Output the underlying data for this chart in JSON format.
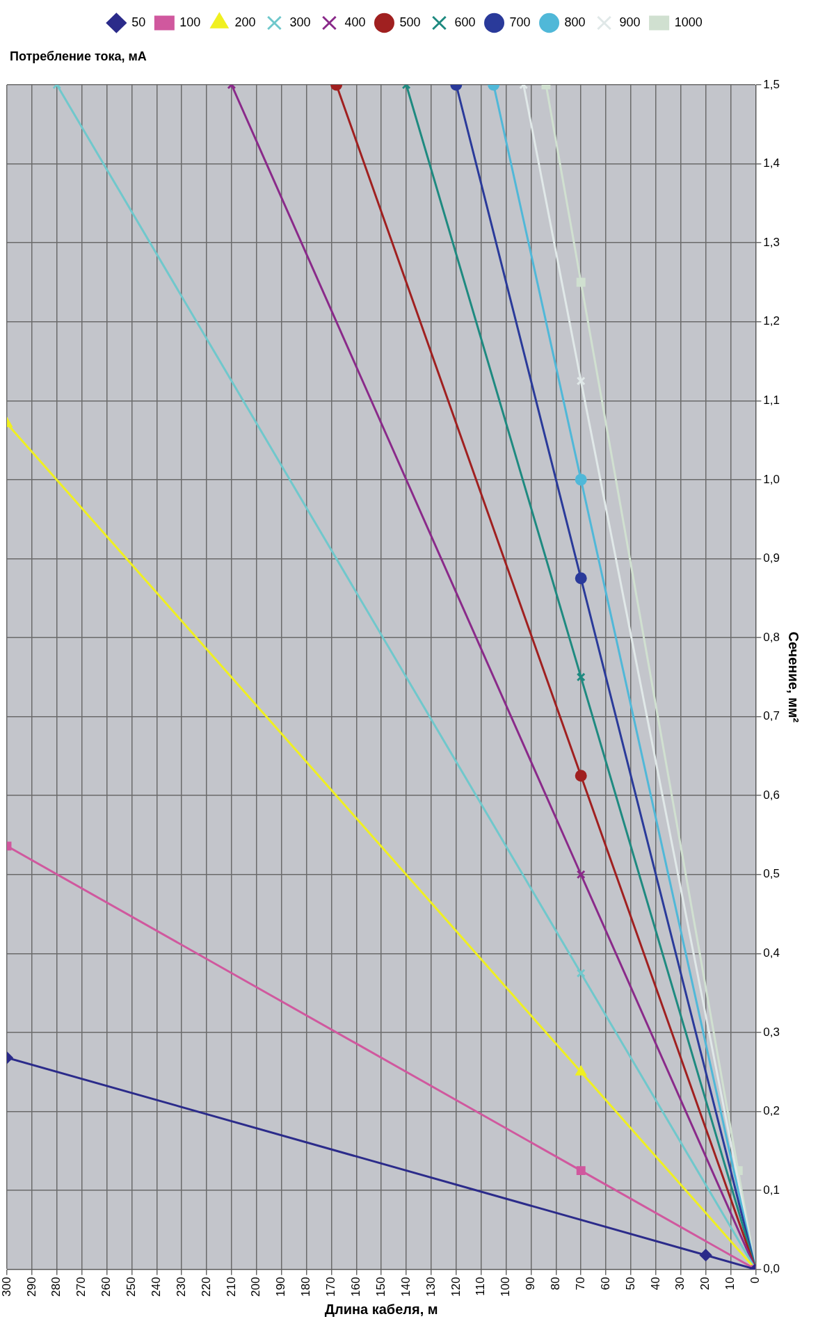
{
  "chart_data": {
    "type": "line",
    "xlabel": "Длина кабеля, м",
    "ylabel": "Сечение, мм²",
    "legend_title": "Потребление тока, мА",
    "xlim": [
      300,
      0
    ],
    "xticks": [
      300,
      290,
      280,
      270,
      260,
      250,
      240,
      230,
      220,
      210,
      200,
      190,
      180,
      170,
      160,
      150,
      140,
      130,
      120,
      110,
      100,
      90,
      80,
      70,
      60,
      50,
      40,
      30,
      20,
      10,
      0
    ],
    "ylim": [
      0,
      1.5
    ],
    "yticks": [
      {
        "value": 0,
        "label": "0,0"
      },
      {
        "value": 0.1,
        "label": "0,1"
      },
      {
        "value": 0.2,
        "label": "0,2"
      },
      {
        "value": 0.3,
        "label": "0,3"
      },
      {
        "value": 0.4,
        "label": "0,4"
      },
      {
        "value": 0.5,
        "label": "0,5"
      },
      {
        "value": 0.6,
        "label": "0,6"
      },
      {
        "value": 0.7,
        "label": "0,7"
      },
      {
        "value": 0.8,
        "label": "0,8"
      },
      {
        "value": 0.9,
        "label": "0,9"
      },
      {
        "value": 1.0,
        "label": "1,0"
      },
      {
        "value": 1.1,
        "label": "1,1"
      },
      {
        "value": 1.2,
        "label": "1,2"
      },
      {
        "value": 1.3,
        "label": "1,3"
      },
      {
        "value": 1.4,
        "label": "1,4"
      },
      {
        "value": 1.5,
        "label": "1,5"
      }
    ],
    "grid": true,
    "legend": "top",
    "series": [
      {
        "name": "50",
        "color": "#2b2b8a",
        "marker": "diamond",
        "x": [
          0,
          20,
          300
        ],
        "values": [
          0,
          0.018,
          0.268
        ]
      },
      {
        "name": "100",
        "color": "#d0589e",
        "marker": "square",
        "x": [
          0,
          70,
          300
        ],
        "values": [
          0,
          0.125,
          0.536
        ]
      },
      {
        "name": "200",
        "color": "#f0f020",
        "marker": "triangle",
        "x": [
          0,
          70,
          300
        ],
        "values": [
          0,
          0.25,
          1.071
        ]
      },
      {
        "name": "300",
        "color": "#70c8cc",
        "marker": "cross",
        "x": [
          0,
          70,
          280
        ],
        "values": [
          0,
          0.375,
          1.5
        ]
      },
      {
        "name": "400",
        "color": "#8a2a8a",
        "marker": "cross",
        "x": [
          0,
          70,
          210
        ],
        "values": [
          0,
          0.5,
          1.5
        ]
      },
      {
        "name": "500",
        "color": "#a02020",
        "marker": "circle",
        "x": [
          0,
          70,
          168
        ],
        "values": [
          0,
          0.625,
          1.5
        ]
      },
      {
        "name": "600",
        "color": "#1e8a80",
        "marker": "cross",
        "x": [
          0,
          70,
          140
        ],
        "values": [
          0,
          0.75,
          1.5
        ]
      },
      {
        "name": "700",
        "color": "#2a3a9a",
        "marker": "circle",
        "x": [
          0,
          70,
          120
        ],
        "values": [
          0,
          0.875,
          1.5
        ]
      },
      {
        "name": "800",
        "color": "#50b8d8",
        "marker": "circle",
        "x": [
          0,
          70,
          105
        ],
        "values": [
          0,
          1.0,
          1.5
        ]
      },
      {
        "name": "900",
        "color": "#e0e8e8",
        "marker": "cross",
        "x": [
          0,
          70,
          93
        ],
        "values": [
          0,
          1.125,
          1.5
        ]
      },
      {
        "name": "1000",
        "color": "#d0e0d0",
        "marker": "square",
        "x": [
          0,
          7,
          70,
          84
        ],
        "values": [
          0,
          0.125,
          1.25,
          1.5
        ]
      }
    ]
  }
}
